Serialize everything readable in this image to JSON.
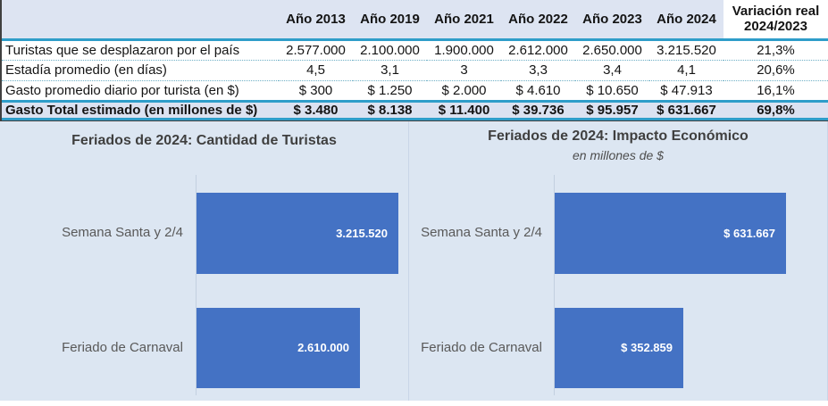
{
  "table": {
    "corner": "",
    "year_headers": [
      "Año 2013",
      "Año 2019",
      "Año 2021",
      "Año 2022",
      "Año 2023",
      "Año 2024"
    ],
    "variation_header_line1": "Variación real",
    "variation_header_line2": "2024/2023",
    "rows": [
      {
        "label": "Turistas que se desplazaron por el país",
        "values": [
          "2.577.000",
          "2.100.000",
          "1.900.000",
          "2.612.000",
          "2.650.000",
          "3.215.520"
        ],
        "variation": "21,3%"
      },
      {
        "label": "Estadía promedio (en días)",
        "values": [
          "4,5",
          "3,1",
          "3",
          "3,3",
          "3,4",
          "4,1"
        ],
        "variation": "20,6%"
      },
      {
        "label": "Gasto promedio diario por turista (en $)",
        "values": [
          "$ 300",
          "$ 1.250",
          "$ 2.000",
          "$ 4.610",
          "$ 10.650",
          "$ 47.913"
        ],
        "variation": "16,1%"
      }
    ],
    "total_row": {
      "label": "Gasto Total estimado (en millones de $)",
      "values": [
        "$ 3.480",
        "$ 8.138",
        "$ 11.400",
        "$ 39.736",
        "$ 95.957",
        "$ 631.667"
      ],
      "variation": "69,8%"
    }
  },
  "chart_data": [
    {
      "type": "bar",
      "orientation": "horizontal",
      "title": "Feriados de 2024: Cantidad de Turistas",
      "categories": [
        "Semana Santa y 2/4",
        "Feriado de Carnaval"
      ],
      "values": [
        3215520,
        2610000
      ],
      "value_labels": [
        "3.215.520",
        "2.610.000"
      ],
      "xlim": [
        0,
        3400000
      ],
      "grid": false,
      "legend": "none"
    },
    {
      "type": "bar",
      "orientation": "horizontal",
      "title": "Feriados de 2024:  Impacto Económico",
      "subtitle": "en millones de $",
      "categories": [
        "Semana Santa y 2/4",
        "Feriado de Carnaval"
      ],
      "values": [
        631667,
        352859
      ],
      "value_labels": [
        "$ 631.667",
        "$ 352.859"
      ],
      "xlim": [
        0,
        750000
      ],
      "grid": false,
      "legend": "none"
    }
  ],
  "colors": {
    "bar_fill": "#4472c4",
    "table_heavy_border": "#2e9dc9",
    "table_dotted_border": "#6fb0c6",
    "header_bg": "#dde4f2",
    "total_row_bg": "#dbe2f1",
    "chart_bg": "#dce6f2",
    "title_text": "#3f3f3f",
    "category_text": "#595959"
  }
}
